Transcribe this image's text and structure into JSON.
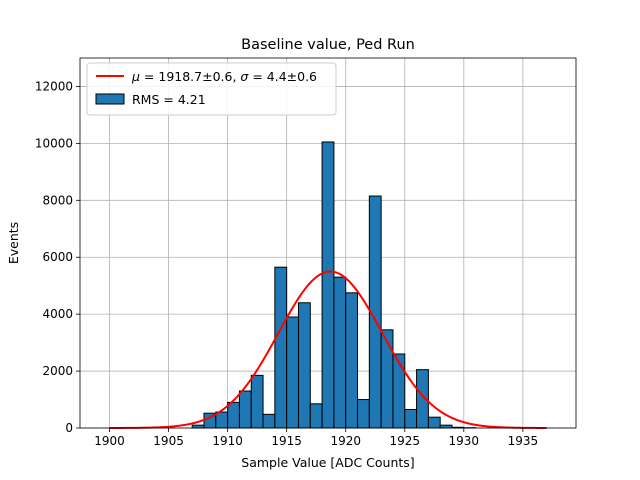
{
  "chart_data": {
    "type": "bar",
    "title": "Baseline value, Ped Run",
    "xlabel": "Sample Value [ADC Counts]",
    "ylabel": "Events",
    "xlim": [
      1897.5,
      1939.5
    ],
    "ylim": [
      0,
      13000
    ],
    "xticks": [
      1900,
      1905,
      1910,
      1915,
      1920,
      1925,
      1930,
      1935
    ],
    "yticks": [
      0,
      2000,
      4000,
      6000,
      8000,
      10000,
      12000
    ],
    "grid": true,
    "legend_position": "top-left",
    "bar_color": "#1f77b4",
    "fit_color": "#ff0000",
    "histogram": {
      "name": "RMS = 4.21",
      "bin_width": 1,
      "bin_left_edges": [
        1907,
        1908,
        1909,
        1910,
        1911,
        1912,
        1913,
        1914,
        1915,
        1916,
        1917,
        1918,
        1919,
        1920,
        1921,
        1922,
        1923,
        1924,
        1925,
        1926,
        1927,
        1928,
        1929,
        1930
      ],
      "counts": [
        100,
        520,
        560,
        900,
        1300,
        1850,
        480,
        5650,
        3900,
        4400,
        850,
        10050,
        5300,
        4750,
        1000,
        8150,
        3450,
        2600,
        650,
        2050,
        380,
        100,
        25,
        10
      ]
    },
    "fit": {
      "name": "$\\mu=1918.7\\pm0.6$, $\\sigma=4.4\\pm0.6$",
      "name_parts": [
        "μ",
        " = 1918.7±0.6, ",
        "σ",
        " = 4.4±0.6"
      ],
      "mu": 1918.7,
      "sigma": 4.4,
      "amplitude": 5500,
      "x_range": [
        1900,
        1937
      ]
    }
  }
}
